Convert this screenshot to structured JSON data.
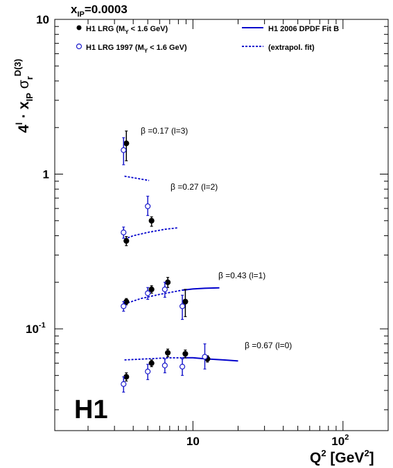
{
  "figure": {
    "xip_label": "x",
    "xip_sub": "IP",
    "xip_value": "=0.0003",
    "logo": "H1",
    "y_axis": {
      "p1": "4",
      "p1_sup": "l",
      "p2": " · x",
      "p2_sub": "IP",
      "p3": " σ",
      "p3_sub": "r",
      "p3_sup": "D(3)"
    },
    "x_axis": {
      "q": "Q",
      "sup1": "2",
      "mid": " [GeV",
      "sup2": "2",
      "end": "]"
    },
    "y_ticks": [
      {
        "value": 10,
        "label": "10"
      },
      {
        "value": 1,
        "label": "1"
      },
      {
        "value": 0.1,
        "base": "10",
        "exp": "-1"
      }
    ],
    "x_ticks": [
      {
        "value": 10,
        "label": "10"
      },
      {
        "value": 100,
        "base": "10",
        "exp": "2"
      }
    ],
    "legend": {
      "lrg": {
        "pre": "H1 LRG (M",
        "sub": "Y",
        "post": " < 1.6 GeV)"
      },
      "lrg97": {
        "pre": "H1 LRG 1997 (M",
        "sub": "Y",
        "post": " < 1.6 GeV)"
      },
      "fit": "H1 2006 DPDF Fit B",
      "extrap": "(extrapol. fit)"
    },
    "beta_labels": [
      {
        "sym": "β",
        "text": " =0.17 (l=3)"
      },
      {
        "sym": "β",
        "text": " =0.27 (l=2)"
      },
      {
        "sym": "β",
        "text": " =0.43 (l=1)"
      },
      {
        "sym": "β",
        "text": " =0.67 (l=0)"
      }
    ]
  },
  "colors": {
    "lrg": "#000000",
    "lrg97": "#1a1acc",
    "fit": "#0000cc",
    "frame": "#000000"
  },
  "chart_data": {
    "type": "scatter",
    "xscale": "log",
    "yscale": "log",
    "xlim": [
      1.2,
      200
    ],
    "ylim": [
      0.022,
      10
    ],
    "series": [
      {
        "name": "H1 LRG (MY < 1.6 GeV)",
        "marker": "filled-circle",
        "points": [
          {
            "beta": 0.17,
            "x": 3.6,
            "y": 1.58,
            "lo": 1.22,
            "hi": 1.9
          },
          {
            "beta": 0.27,
            "x": 3.6,
            "y": 0.37,
            "lo": 0.345,
            "hi": 0.395
          },
          {
            "beta": 0.27,
            "x": 5.3,
            "y": 0.5,
            "lo": 0.46,
            "hi": 0.53
          },
          {
            "beta": 0.43,
            "x": 3.6,
            "y": 0.15,
            "lo": 0.143,
            "hi": 0.157
          },
          {
            "beta": 0.43,
            "x": 5.3,
            "y": 0.18,
            "lo": 0.17,
            "hi": 0.19
          },
          {
            "beta": 0.43,
            "x": 6.8,
            "y": 0.2,
            "lo": 0.185,
            "hi": 0.215
          },
          {
            "beta": 0.43,
            "x": 8.9,
            "y": 0.15,
            "lo": 0.12,
            "hi": 0.18
          },
          {
            "beta": 0.67,
            "x": 3.6,
            "y": 0.049,
            "lo": 0.046,
            "hi": 0.052
          },
          {
            "beta": 0.67,
            "x": 5.3,
            "y": 0.06,
            "lo": 0.057,
            "hi": 0.063
          },
          {
            "beta": 0.67,
            "x": 6.8,
            "y": 0.07,
            "lo": 0.066,
            "hi": 0.074
          },
          {
            "beta": 0.67,
            "x": 8.9,
            "y": 0.069,
            "lo": 0.065,
            "hi": 0.073
          },
          {
            "beta": 0.67,
            "x": 12.5,
            "y": 0.064,
            "lo": 0.061,
            "hi": 0.067
          }
        ]
      },
      {
        "name": "H1 LRG 1997 (MY < 1.6 GeV)",
        "marker": "open-circle",
        "points": [
          {
            "beta": 0.17,
            "x": 3.45,
            "y": 1.43,
            "lo": 1.15,
            "hi": 1.72
          },
          {
            "beta": 0.27,
            "x": 3.45,
            "y": 0.42,
            "lo": 0.385,
            "hi": 0.455
          },
          {
            "beta": 0.27,
            "x": 5.0,
            "y": 0.62,
            "lo": 0.54,
            "hi": 0.72
          },
          {
            "beta": 0.43,
            "x": 3.45,
            "y": 0.14,
            "lo": 0.13,
            "hi": 0.15
          },
          {
            "beta": 0.43,
            "x": 5.0,
            "y": 0.17,
            "lo": 0.155,
            "hi": 0.185
          },
          {
            "beta": 0.43,
            "x": 6.5,
            "y": 0.18,
            "lo": 0.16,
            "hi": 0.2
          },
          {
            "beta": 0.43,
            "x": 8.5,
            "y": 0.14,
            "lo": 0.115,
            "hi": 0.165
          },
          {
            "beta": 0.67,
            "x": 3.45,
            "y": 0.044,
            "lo": 0.039,
            "hi": 0.049
          },
          {
            "beta": 0.67,
            "x": 5.0,
            "y": 0.053,
            "lo": 0.047,
            "hi": 0.059
          },
          {
            "beta": 0.67,
            "x": 6.5,
            "y": 0.058,
            "lo": 0.052,
            "hi": 0.064
          },
          {
            "beta": 0.67,
            "x": 8.5,
            "y": 0.057,
            "lo": 0.05,
            "hi": 0.064
          },
          {
            "beta": 0.67,
            "x": 12.0,
            "y": 0.066,
            "lo": 0.055,
            "hi": 0.08
          }
        ]
      }
    ],
    "curves": [
      {
        "name": "H1 2006 DPDF Fit B",
        "style": "solid",
        "beta": 0.43,
        "points": [
          [
            8.5,
            0.178
          ],
          [
            10,
            0.181
          ],
          [
            12,
            0.183
          ],
          [
            15,
            0.184
          ]
        ]
      },
      {
        "name": "H1 2006 DPDF Fit B",
        "style": "solid",
        "beta": 0.67,
        "points": [
          [
            8.5,
            0.065
          ],
          [
            10,
            0.065
          ],
          [
            12,
            0.064
          ],
          [
            16,
            0.063
          ],
          [
            20,
            0.062
          ]
        ]
      },
      {
        "name": "(extrapol. fit)",
        "style": "dashed",
        "beta": 0.17,
        "points": [
          [
            3.5,
            0.97
          ],
          [
            4.2,
            0.94
          ],
          [
            5.1,
            0.91
          ]
        ]
      },
      {
        "name": "(extrapol. fit)",
        "style": "dashed",
        "beta": 0.27,
        "points": [
          [
            3.5,
            0.38
          ],
          [
            4,
            0.4
          ],
          [
            5,
            0.42
          ],
          [
            6.5,
            0.44
          ],
          [
            8,
            0.45
          ]
        ]
      },
      {
        "name": "(extrapol. fit)",
        "style": "dashed",
        "beta": 0.43,
        "points": [
          [
            3.5,
            0.145
          ],
          [
            4.5,
            0.157
          ],
          [
            6,
            0.167
          ],
          [
            8.5,
            0.178
          ]
        ]
      },
      {
        "name": "(extrapol. fit)",
        "style": "dashed",
        "beta": 0.67,
        "points": [
          [
            3.5,
            0.063
          ],
          [
            5,
            0.064
          ],
          [
            7,
            0.065
          ],
          [
            8.5,
            0.065
          ]
        ]
      }
    ],
    "grid": false,
    "legend_position": "top"
  }
}
